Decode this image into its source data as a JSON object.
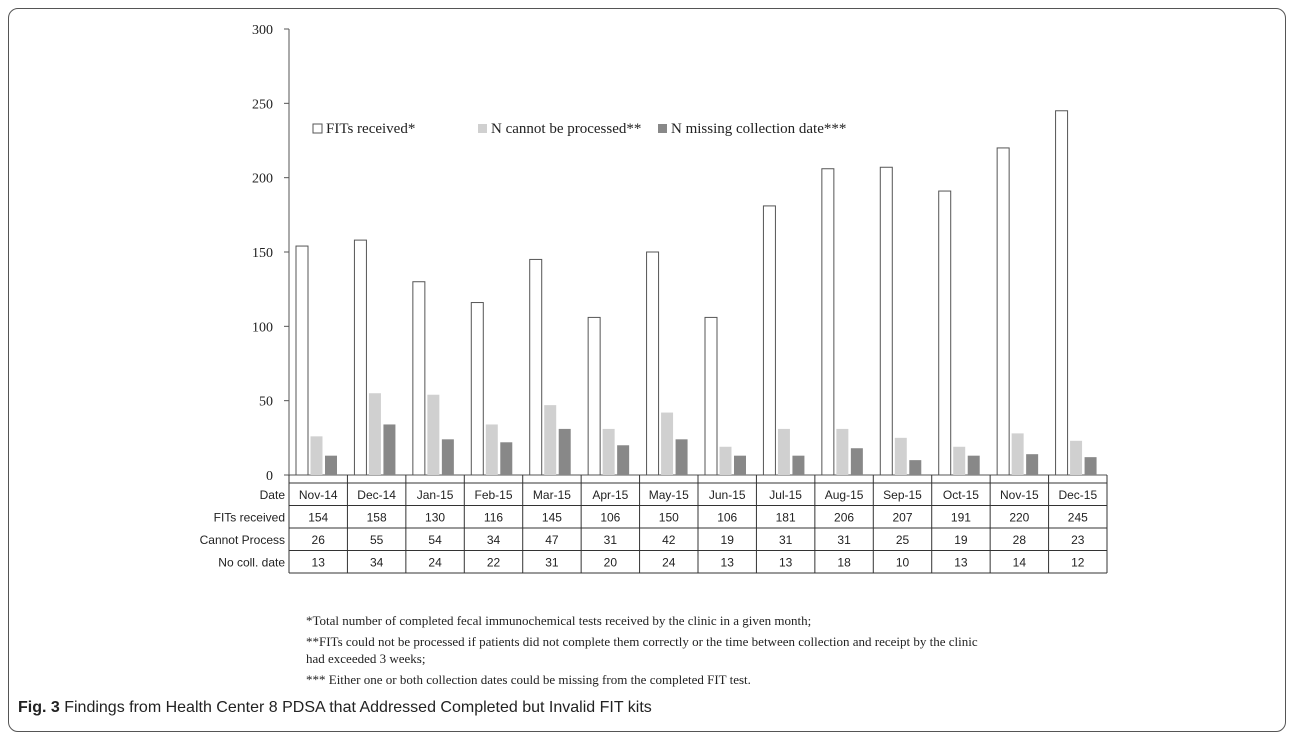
{
  "chart_data": {
    "type": "bar",
    "categories": [
      "Nov-14",
      "Dec-14",
      "Jan-15",
      "Feb-15",
      "Mar-15",
      "Apr-15",
      "May-15",
      "Jun-15",
      "Jul-15",
      "Aug-15",
      "Sep-15",
      "Oct-15",
      "Nov-15",
      "Dec-15"
    ],
    "series": [
      {
        "name": "FITs received*",
        "values": [
          154,
          158,
          130,
          116,
          145,
          106,
          150,
          106,
          181,
          206,
          207,
          191,
          220,
          245
        ],
        "fill": "#ffffff",
        "stroke": "#555555"
      },
      {
        "name": "N cannot be processed**",
        "values": [
          26,
          55,
          54,
          34,
          47,
          31,
          42,
          19,
          31,
          31,
          25,
          19,
          28,
          23
        ],
        "fill": "#d0d0d0",
        "stroke": "none"
      },
      {
        "name": "N  missing collection date***",
        "values": [
          13,
          34,
          24,
          22,
          31,
          20,
          24,
          13,
          13,
          18,
          10,
          13,
          14,
          12
        ],
        "fill": "#888888",
        "stroke": "none"
      }
    ],
    "ylim": [
      0,
      300
    ],
    "yticks": [
      0,
      50,
      100,
      150,
      200,
      250,
      300
    ],
    "legend_position": "top",
    "grid": false,
    "data_table": {
      "header_label": "Date",
      "rows": [
        {
          "label": "FITs received",
          "series_index": 0
        },
        {
          "label": "Cannot Process",
          "series_index": 1
        },
        {
          "label": "No coll. date",
          "series_index": 2
        }
      ]
    }
  },
  "notes": [
    "*Total number of completed fecal immunochemical tests received by the clinic in a given month;",
    "**FITs could not be processed if patients did not complete  them correctly or the time between collection and receipt by the clinic had exceeded 3 weeks;",
    "*** Either one or both collection dates could be missing from the completed FIT test."
  ],
  "caption": {
    "label": "Fig. 3",
    "text": " Findings from Health Center 8 PDSA that Addressed Completed but Invalid FIT kits"
  }
}
